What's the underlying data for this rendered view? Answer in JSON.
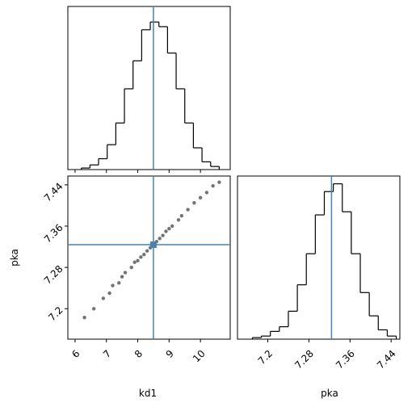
{
  "chart_data": [
    {
      "type": "histogram",
      "color": "#000000",
      "truth_color": "#4682b4",
      "bins": [
        6.2,
        6.475,
        6.75,
        7.025,
        7.3,
        7.575,
        7.85,
        8.125,
        8.4,
        8.675,
        8.95,
        9.225,
        9.5,
        9.775,
        10.05,
        10.325,
        10.6
      ],
      "values": [
        1,
        3,
        7,
        16,
        30,
        52,
        70,
        90,
        95,
        92,
        75,
        52,
        30,
        14,
        5,
        2
      ],
      "xlim": [
        5.77,
        10.95
      ],
      "xticks": [
        6,
        7,
        8,
        9,
        10
      ],
      "ylim": [
        0,
        105
      ],
      "truth": 8.5
    },
    {
      "type": "scatter",
      "color": "#000000",
      "truth_color": "#4682b4",
      "xlabel": "kd1",
      "ylabel": "pka",
      "x": [
        6.3,
        6.6,
        6.9,
        7.1,
        7.2,
        7.4,
        7.5,
        7.6,
        7.8,
        7.9,
        8.0,
        8.1,
        8.2,
        8.3,
        8.4,
        8.5,
        8.6,
        8.7,
        8.8,
        8.9,
        9.0,
        9.1,
        9.3,
        9.4,
        9.6,
        9.8,
        10.0,
        10.2,
        10.4,
        10.6
      ],
      "y": [
        7.183,
        7.2,
        7.22,
        7.23,
        7.245,
        7.25,
        7.262,
        7.27,
        7.28,
        7.29,
        7.293,
        7.3,
        7.305,
        7.312,
        7.318,
        7.324,
        7.33,
        7.336,
        7.342,
        7.35,
        7.355,
        7.36,
        7.372,
        7.38,
        7.392,
        7.405,
        7.415,
        7.425,
        7.438,
        7.445
      ],
      "xlim": [
        5.77,
        10.95
      ],
      "xticks": [
        6,
        7,
        8,
        9,
        10
      ],
      "ylim": [
        7.141,
        7.457
      ],
      "yticks": [
        7.2,
        7.28,
        7.36,
        7.44
      ],
      "truth_x": 8.5,
      "truth_y": 7.324
    },
    {
      "type": "histogram",
      "color": "#000000",
      "truth_color": "#4682b4",
      "xlabel": "pka",
      "bins": [
        7.17,
        7.1875,
        7.205,
        7.2225,
        7.24,
        7.2575,
        7.275,
        7.2925,
        7.31,
        7.3275,
        7.345,
        7.3625,
        7.38,
        7.3975,
        7.415,
        7.4325,
        7.45
      ],
      "values": [
        1,
        2,
        5,
        8,
        18,
        35,
        55,
        80,
        95,
        100,
        82,
        55,
        30,
        15,
        6,
        2
      ],
      "xlim": [
        7.141,
        7.457
      ],
      "xticks": [
        7.2,
        7.28,
        7.36,
        7.44
      ],
      "ylim": [
        0,
        105
      ],
      "truth": 7.324
    }
  ]
}
